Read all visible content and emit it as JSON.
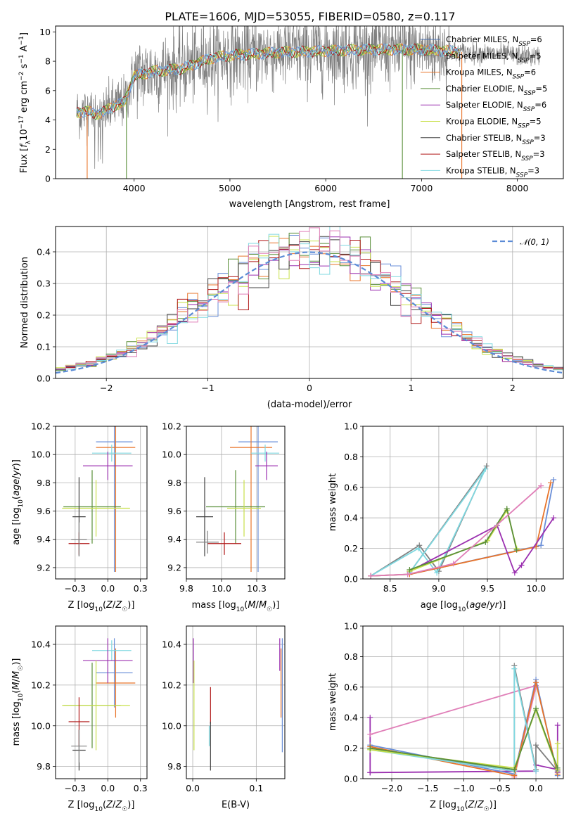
{
  "figure": {
    "title": "PLATE=1606, MJD=53055, FIBERID=0580, z=0.117"
  },
  "series": [
    {
      "name": "Chabrier MILES, N_SSP=6",
      "color": "#4c72b0",
      "p1": "#6a8fd8"
    },
    {
      "name": "Salpeter MILES, N_SSP=5",
      "color": "#7f7f7f",
      "p1": "#808080"
    },
    {
      "name": "Kroupa MILES, N_SSP=6",
      "color": "#e8742a",
      "p1": "#e8742a"
    },
    {
      "name": "Chabrier ELODIE, N_SSP=5",
      "color": "#5a8f3a",
      "p1": "#5a8f3a"
    },
    {
      "name": "Salpeter ELODIE, N_SSP=6",
      "color": "#9b30b0",
      "p1": "#9b30b0"
    },
    {
      "name": "Kroupa ELODIE, N_SSP=5",
      "color": "#c8e04a",
      "p1": "#c8e04a"
    },
    {
      "name": "Chabrier STELIB, N_SSP=3",
      "color": "#404040",
      "p1": "#404040"
    },
    {
      "name": "Salpeter STELIB, N_SSP=3",
      "color": "#b01818",
      "p1": "#b01818"
    },
    {
      "name": "Kroupa STELIB, N_SSP=3",
      "color": "#7fd8e0",
      "p1": "#7fd8e0"
    }
  ],
  "chart_data": [
    {
      "type": "line",
      "panel": "spectrum",
      "xlabel": "wavelength [Angstrom, rest frame]",
      "ylabel": "Flux [f_λ 10^-17 erg cm^-2 s^-1 A^-1]",
      "xlim": [
        3180,
        8480
      ],
      "ylim": [
        0,
        10.4
      ],
      "xticks": [
        4000,
        5000,
        6000,
        7000,
        8000
      ],
      "yticks": [
        0,
        2,
        4,
        6,
        8,
        10
      ],
      "grid": false,
      "legend": "top-right",
      "continuum": [
        [
          3400,
          4.5
        ],
        [
          3500,
          4.6
        ],
        [
          3600,
          4.4
        ],
        [
          3700,
          4.6
        ],
        [
          3800,
          5.0
        ],
        [
          3900,
          5.2
        ],
        [
          4000,
          7.0
        ],
        [
          4200,
          7.3
        ],
        [
          4500,
          7.5
        ],
        [
          4800,
          8.2
        ],
        [
          5000,
          8.4
        ],
        [
          5500,
          8.6
        ],
        [
          6000,
          8.7
        ],
        [
          6500,
          8.8
        ],
        [
          7000,
          8.8
        ],
        [
          7500,
          8.6
        ],
        [
          8000,
          8.4
        ],
        [
          8230,
          8.3
        ]
      ]
    },
    {
      "type": "line",
      "panel": "residual-histogram",
      "xlabel": "(data-model)/error",
      "ylabel": "Normed distribution",
      "xlim": [
        -2.5,
        2.5
      ],
      "ylim": [
        0,
        0.48
      ],
      "xticks": [
        -2,
        -1,
        0,
        1,
        2
      ],
      "yticks": [
        0.0,
        0.1,
        0.2,
        0.3,
        0.4
      ],
      "grid": true,
      "legend": "top-right",
      "reference": {
        "name": "𝒩(0, 1)",
        "mu": 0,
        "sigma": 1,
        "color": "#5b8bd6"
      }
    },
    {
      "type": "scatter",
      "panel": "age-vs-metallicity",
      "xlabel": "Z [log10(Z/Z☉)]",
      "ylabel": "age [log10(age/yr)]",
      "xlim": [
        -0.4,
        0.3
      ],
      "ylim": [
        9.12,
        10.2
      ],
      "xticks": [
        -0.25,
        0.0,
        0.25
      ],
      "yticks": [
        9.2,
        9.4,
        9.6,
        9.8,
        10.0,
        10.2
      ],
      "grid": true,
      "errorbars": [
        {
          "series": 0,
          "x": 0.05,
          "xerr": 0.14,
          "y": 10.09,
          "yerr": 0.92
        },
        {
          "series": 2,
          "x": 0.06,
          "xerr": 0.15,
          "y": 10.05,
          "yerr": 0.88
        },
        {
          "series": 8,
          "x": 0.03,
          "xerr": 0.15,
          "y": 10.01,
          "yerr": 0.06
        },
        {
          "series": 4,
          "x": 0.0,
          "xerr": 0.19,
          "y": 9.92,
          "yerr": 0.1
        },
        {
          "series": 3,
          "x": -0.12,
          "xerr": 0.22,
          "y": 9.63,
          "yerr": 0.26
        },
        {
          "series": 5,
          "x": -0.09,
          "xerr": 0.26,
          "y": 9.62,
          "yerr": 0.2
        },
        {
          "series": 6,
          "x": -0.22,
          "xerr": 0.05,
          "y": 9.56,
          "yerr": 0.28
        },
        {
          "series": 7,
          "x": -0.22,
          "xerr": 0.08,
          "y": 9.37,
          "yerr": 0.08
        },
        {
          "series": 1,
          "x": -0.22,
          "xerr": 0.06,
          "y": 9.4,
          "yerr": 0.12
        }
      ]
    },
    {
      "type": "scatter",
      "panel": "age-vs-mass",
      "xlabel": "mass [log10(M/M☉)]",
      "ylabel": "",
      "xlim": [
        9.75,
        10.45
      ],
      "ylim": [
        9.12,
        10.2
      ],
      "xticks": [
        9.75,
        10.0,
        10.25
      ],
      "yticks": [
        9.2,
        9.4,
        9.6,
        9.8,
        10.0,
        10.2
      ],
      "grid": true,
      "errorbars": [
        {
          "series": 0,
          "x": 10.26,
          "xerr": 0.14,
          "y": 10.09,
          "yerr": 0.92
        },
        {
          "series": 2,
          "x": 10.21,
          "xerr": 0.15,
          "y": 10.05,
          "yerr": 0.88
        },
        {
          "series": 8,
          "x": 10.31,
          "xerr": 0.1,
          "y": 10.01,
          "yerr": 0.06
        },
        {
          "series": 4,
          "x": 10.32,
          "xerr": 0.08,
          "y": 9.92,
          "yerr": 0.1
        },
        {
          "series": 3,
          "x": 10.1,
          "xerr": 0.21,
          "y": 9.63,
          "yerr": 0.26
        },
        {
          "series": 5,
          "x": 10.16,
          "xerr": 0.12,
          "y": 9.62,
          "yerr": 0.2
        },
        {
          "series": 6,
          "x": 9.88,
          "xerr": 0.06,
          "y": 9.56,
          "yerr": 0.28
        },
        {
          "series": 7,
          "x": 10.02,
          "xerr": 0.12,
          "y": 9.37,
          "yerr": 0.08
        },
        {
          "series": 1,
          "x": 9.9,
          "xerr": 0.08,
          "y": 9.38,
          "yerr": 0.08
        }
      ]
    },
    {
      "type": "line",
      "panel": "mass-weight-vs-age",
      "xlabel": "age [log10(age/yr)]",
      "ylabel": "mass weight",
      "xlim": [
        8.22,
        10.28
      ],
      "ylim": [
        0,
        1.0
      ],
      "xticks": [
        8.5,
        9.0,
        9.5,
        10.0
      ],
      "yticks": [
        0.0,
        0.2,
        0.4,
        0.6,
        0.8,
        1.0
      ],
      "grid": true,
      "lines": [
        {
          "series": 1,
          "x": [
            8.3,
            8.8,
            9.0,
            9.49,
            8.7
          ],
          "y": [
            0.02,
            0.22,
            0.05,
            0.74,
            0.04
          ]
        },
        {
          "series": 8,
          "x": [
            8.3,
            8.79,
            8.98,
            9.48,
            8.7
          ],
          "y": [
            0.02,
            0.2,
            0.04,
            0.72,
            0.04
          ]
        },
        {
          "series": 0,
          "x": [
            8.3,
            8.7,
            10.05,
            10.18
          ],
          "y": [
            0.02,
            0.03,
            0.22,
            0.65
          ]
        },
        {
          "series": 2,
          "x": [
            8.3,
            8.7,
            10.0,
            10.15
          ],
          "y": [
            0.02,
            0.03,
            0.21,
            0.63
          ]
        },
        {
          "series": 4,
          "x": [
            8.7,
            9.6,
            9.78,
            9.85,
            10.18
          ],
          "y": [
            0.05,
            0.35,
            0.04,
            0.09,
            0.4
          ]
        },
        {
          "series": 5,
          "x": [
            8.7,
            9.5,
            9.7,
            9.8
          ],
          "y": [
            0.05,
            0.25,
            0.45,
            0.2
          ]
        },
        {
          "series": 3,
          "x": [
            8.7,
            9.48,
            9.7,
            9.8
          ],
          "y": [
            0.06,
            0.24,
            0.46,
            0.19
          ]
        },
        {
          "series": 7,
          "x": [
            8.3,
            8.68,
            9.15,
            10.05
          ],
          "y": [
            0.02,
            0.03,
            0.1,
            0.61
          ]
        }
      ]
    },
    {
      "type": "scatter",
      "panel": "mass-vs-metallicity",
      "xlabel": "Z [log10(Z/Z☉)]",
      "ylabel": "mass [log10(M/M☉)]",
      "xlim": [
        -0.4,
        0.3
      ],
      "ylim": [
        9.74,
        10.49
      ],
      "xticks": [
        -0.25,
        0.0,
        0.25
      ],
      "yticks": [
        9.8,
        10.0,
        10.2,
        10.4
      ],
      "grid": true,
      "errorbars": [
        {
          "series": 0,
          "x": 0.05,
          "xerr": 0.14,
          "y": 10.26,
          "yerr": 0.17
        },
        {
          "series": 2,
          "x": 0.06,
          "xerr": 0.15,
          "y": 10.21,
          "yerr": 0.17
        },
        {
          "series": 8,
          "x": 0.03,
          "xerr": 0.15,
          "y": 10.37,
          "yerr": 0.05
        },
        {
          "series": 4,
          "x": 0.0,
          "xerr": 0.19,
          "y": 10.32,
          "yerr": 0.11
        },
        {
          "series": 3,
          "x": -0.12,
          "xerr": 0.22,
          "y": 10.1,
          "yerr": 0.21
        },
        {
          "series": 5,
          "x": -0.09,
          "xerr": 0.26,
          "y": 10.1,
          "yerr": 0.22
        },
        {
          "series": 6,
          "x": -0.22,
          "xerr": 0.05,
          "y": 9.88,
          "yerr": 0.1
        },
        {
          "series": 7,
          "x": -0.22,
          "xerr": 0.08,
          "y": 10.02,
          "yerr": 0.12
        },
        {
          "series": 1,
          "x": -0.22,
          "xerr": 0.06,
          "y": 9.9,
          "yerr": 0.08
        }
      ]
    },
    {
      "type": "scatter",
      "panel": "mass-vs-ebv",
      "xlabel": "E(B-V)",
      "ylabel": "",
      "xlim": [
        -0.01,
        0.145
      ],
      "ylim": [
        9.74,
        10.49
      ],
      "xticks": [
        0.0,
        0.1
      ],
      "yticks": [
        9.8,
        10.0,
        10.2,
        10.4
      ],
      "grid": true,
      "errorbars": [
        {
          "series": 4,
          "x": 0.001,
          "xerr": 0,
          "y": 10.32,
          "yerr": 0.11
        },
        {
          "series": 5,
          "x": 0.002,
          "xerr": 0,
          "y": 10.1,
          "yerr": 0.22
        },
        {
          "series": 7,
          "x": 0.028,
          "xerr": 0,
          "y": 10.1,
          "yerr": 0.09
        },
        {
          "series": 6,
          "x": 0.028,
          "xerr": 0,
          "y": 9.9,
          "yerr": 0.12
        },
        {
          "series": 8,
          "x": 0.026,
          "xerr": 0,
          "y": 9.95,
          "yerr": 0.05
        },
        {
          "series": 2,
          "x": 0.139,
          "xerr": 0,
          "y": 10.21,
          "yerr": 0.17
        },
        {
          "series": 0,
          "x": 0.141,
          "xerr": 0,
          "y": 10.15,
          "yerr": 0.28
        },
        {
          "series": 4,
          "x": 0.137,
          "xerr": 0,
          "y": 10.35,
          "yerr": 0.08
        }
      ]
    },
    {
      "type": "line",
      "panel": "mass-weight-vs-metallicity",
      "xlabel": "Z [log10(Z/Z☉)]",
      "ylabel": "mass weight",
      "xlim": [
        -2.4,
        0.38
      ],
      "ylim": [
        0,
        1.0
      ],
      "xticks": [
        -2.0,
        -1.5,
        -1.0,
        -0.5,
        0.0
      ],
      "yticks": [
        0.0,
        0.2,
        0.4,
        0.6,
        0.8,
        1.0
      ],
      "grid": true,
      "lines": [
        {
          "series": 4,
          "x": [
            -2.3,
            -2.3,
            -2.3,
            0.0,
            0.0,
            0.3,
            0.3,
            0.3
          ],
          "y": [
            0.04,
            0.4,
            0.04,
            0.05,
            0.09,
            0.06,
            0.35,
            0.04
          ]
        },
        {
          "series": 7,
          "x": [
            -2.3,
            0.0,
            0.0,
            -0.3
          ],
          "y": [
            0.29,
            0.61,
            0.6,
            0.01
          ]
        },
        {
          "series": 0,
          "x": [
            -2.3,
            -0.3,
            0.0,
            0.3
          ],
          "y": [
            0.22,
            0.03,
            0.65,
            0.02
          ]
        },
        {
          "series": 2,
          "x": [
            -2.3,
            -0.3,
            0.0,
            0.3
          ],
          "y": [
            0.21,
            0.02,
            0.63,
            0.03
          ]
        },
        {
          "series": 1,
          "x": [
            -2.3,
            -0.3,
            -0.3,
            0.0,
            0.0,
            0.3
          ],
          "y": [
            0.2,
            0.05,
            0.74,
            0.06,
            0.22,
            0.05
          ]
        },
        {
          "series": 8,
          "x": [
            -2.3,
            -0.3,
            -0.3,
            0.0
          ],
          "y": [
            0.19,
            0.05,
            0.72,
            0.05
          ]
        },
        {
          "series": 5,
          "x": [
            -2.3,
            -0.3,
            0.0,
            0.3,
            0.3
          ],
          "y": [
            0.19,
            0.07,
            0.45,
            0.06,
            0.23
          ]
        },
        {
          "series": 3,
          "x": [
            -2.3,
            -0.3,
            0.0,
            0.3
          ],
          "y": [
            0.2,
            0.06,
            0.46,
            0.07
          ]
        }
      ]
    }
  ]
}
